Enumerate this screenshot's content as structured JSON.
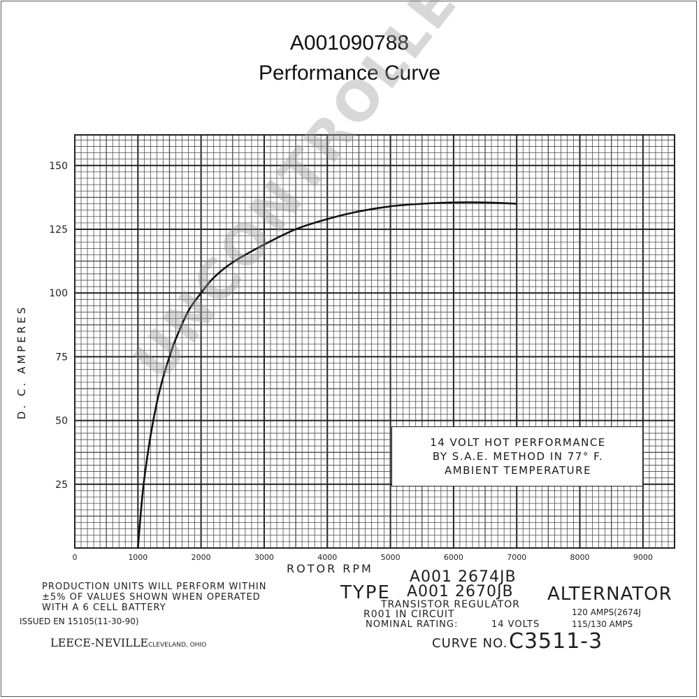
{
  "header": {
    "part_number": "A001090788",
    "subtitle": "Performance Curve"
  },
  "chart_data": {
    "type": "line",
    "xlabel": "ROTOR RPM",
    "ylabel": "D. C. AMPERES",
    "xlim": [
      0,
      9500
    ],
    "ylim": [
      0,
      162
    ],
    "x_ticks": [
      "0",
      "1000",
      "2000",
      "3000",
      "4000",
      "5000",
      "6000",
      "7000",
      "8000",
      "9000"
    ],
    "y_ticks": [
      "25",
      "50",
      "75",
      "100",
      "125",
      "150"
    ],
    "grid": true,
    "series": [
      {
        "x": [
          1000,
          1050,
          1100,
          1200,
          1300,
          1400,
          1500,
          1600,
          1800,
          2000,
          2200,
          2500,
          3000,
          3500,
          4000,
          4500,
          5000,
          5500,
          6000,
          6500,
          7000
        ],
        "y": [
          0,
          15,
          27,
          44,
          57,
          67,
          75,
          82,
          93,
          100,
          106,
          112,
          119,
          125,
          129,
          132,
          134,
          135,
          135.5,
          135.5,
          135
        ]
      }
    ]
  },
  "annotation": {
    "line1": "14 VOLT HOT PERFORMANCE",
    "line2": "BY S.A.E. METHOD IN 77° F.",
    "line3": "AMBIENT TEMPERATURE"
  },
  "footer": {
    "production_note_1": "PRODUCTION  UNITS WILL  PERFORM  WITHIN",
    "production_note_2": "±5% OF VALUES  SHOWN  WHEN  OPERATED",
    "production_note_3": "WITH  A   6    CELL BATTERY",
    "issued": "ISSUED EN 15105(11-30-90)",
    "maker": "LEECE-NEVILLE",
    "maker_city": "CLEVELAND, OHIO",
    "type_label": "TYPE",
    "type_1": "A001  2674JB",
    "type_2": "A001  2670JB",
    "alternator": "ALTERNATOR",
    "regulator_1": "TRANSISTOR  REGULATOR",
    "regulator_2": "R001          IN CIRCUIT",
    "rating_label": "NOMINAL RATING:",
    "rating_volts": "14 VOLTS",
    "amps_1": "120 AMPS(2674J",
    "amps_2": "115/130 AMPS",
    "curve_label": "CURVE NO.",
    "curve_number": "C3511-3"
  },
  "watermark": "UNCONTROLLED COPY"
}
